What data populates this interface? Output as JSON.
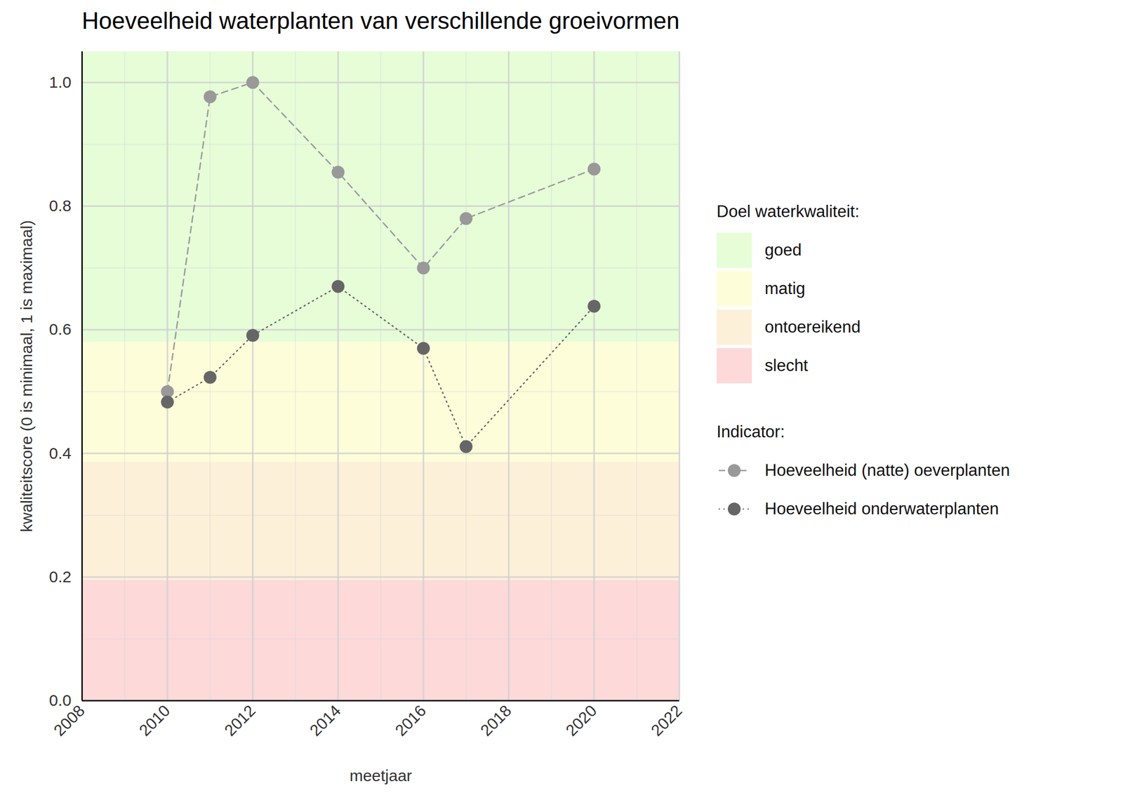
{
  "chart_data": {
    "type": "line",
    "title": "Hoeveelheid waterplanten van verschillende groeivormen",
    "x_label": "meetjaar",
    "y_label": "kwaliteitscore (0 is minimaal, 1 is maximaal)",
    "x": [
      2010,
      2011,
      2012,
      2014,
      2016,
      2017,
      2020
    ],
    "series": [
      {
        "name": "Hoeveelheid (natte) oeverplanten",
        "color": "#999999",
        "line_style": "dashed",
        "marker": "circle",
        "values": [
          0.5,
          0.977,
          1.0,
          0.855,
          0.7,
          0.78,
          0.86
        ]
      },
      {
        "name": "Hoeveelheid onderwaterplanten",
        "color": "#666666",
        "line_style": "dotted",
        "marker": "circle",
        "values": [
          0.483,
          0.523,
          0.591,
          0.67,
          0.57,
          0.411,
          0.638
        ]
      }
    ],
    "xlim": [
      2008,
      2022
    ],
    "xticks": [
      2008,
      2010,
      2012,
      2014,
      2016,
      2018,
      2020,
      2022
    ],
    "ylim": [
      0,
      1.05
    ],
    "yticks": [
      {
        "value": 0,
        "label": "0.0"
      },
      0.2,
      0.4,
      0.6,
      0.8,
      {
        "value": 1,
        "label": "1.0"
      }
    ],
    "grid": true,
    "legend": "right",
    "legend_title": "Indicator:",
    "bands_title": "Doel waterkwaliteit:",
    "bands": [
      {
        "name": "goed",
        "color": "#e6fdd8",
        "from": 0.58,
        "to": 1.05
      },
      {
        "name": "matig",
        "color": "#fefdd9",
        "from": 0.386,
        "to": 0.58
      },
      {
        "name": "ontoereikend",
        "color": "#fdf0d9",
        "from": 0.195,
        "to": 0.386
      },
      {
        "name": "slecht",
        "color": "#fdd9da",
        "from": 0,
        "to": 0.195
      }
    ]
  }
}
